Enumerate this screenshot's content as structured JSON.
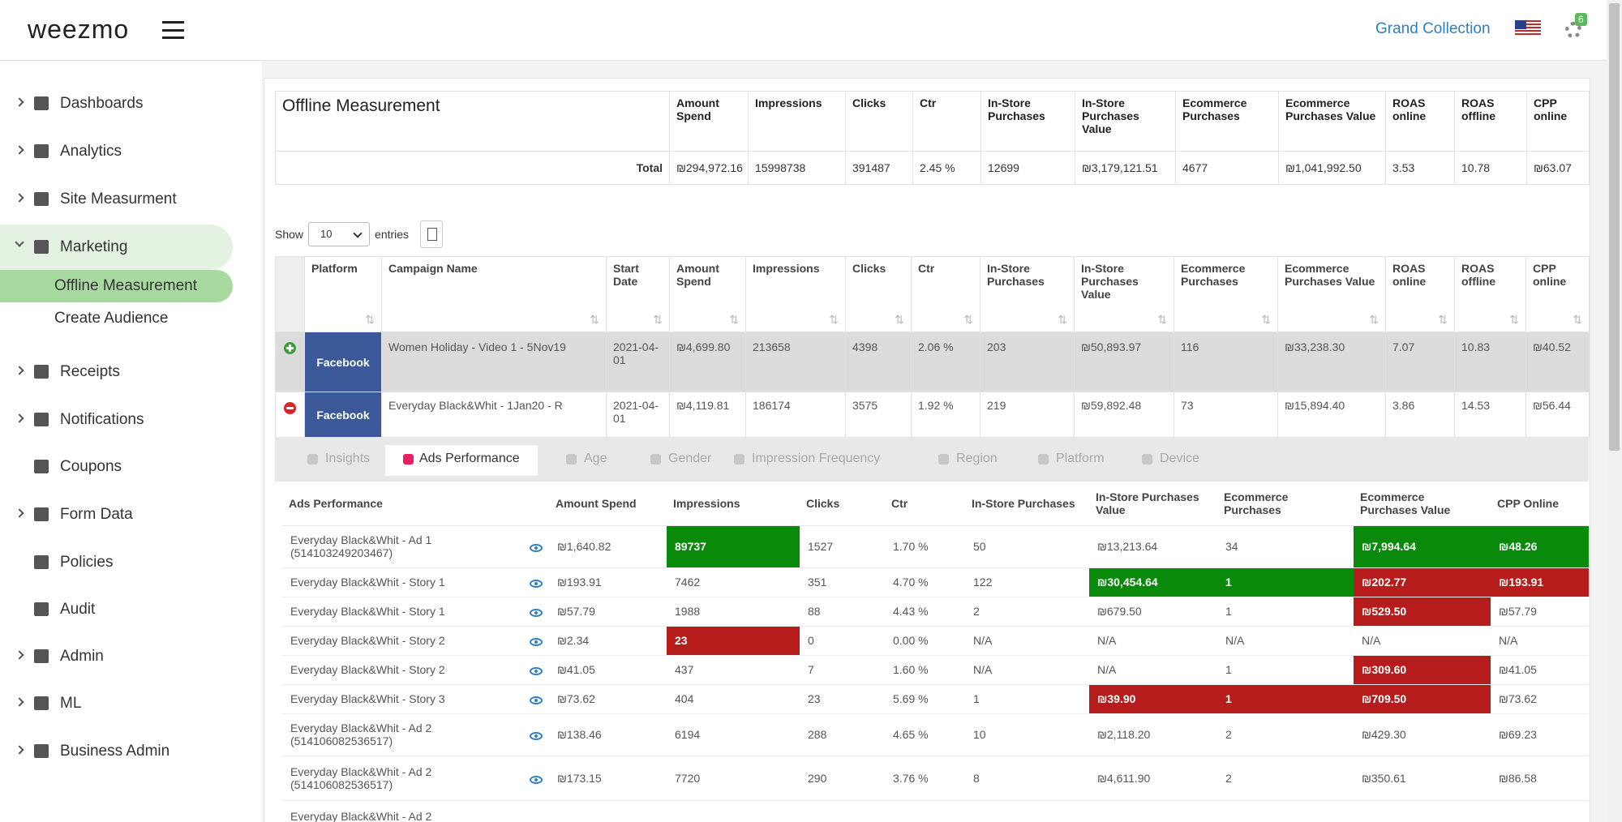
{
  "header": {
    "logo": "weezmo",
    "store": "Grand Collection",
    "badge": "6"
  },
  "sidebar": {
    "open_index": 3,
    "items": [
      {
        "label": "Dashboards",
        "expandable": true
      },
      {
        "label": "Analytics",
        "expandable": true
      },
      {
        "label": "Site Measurment",
        "expandable": true
      },
      {
        "label": "Marketing",
        "expandable": true
      },
      {
        "label": "Receipts",
        "expandable": true
      },
      {
        "label": "Notifications",
        "expandable": true
      },
      {
        "label": "Coupons",
        "expandable": false
      },
      {
        "label": "Form Data",
        "expandable": true
      },
      {
        "label": "Policies",
        "expandable": false
      },
      {
        "label": "Audit",
        "expandable": false
      },
      {
        "label": "Admin",
        "expandable": true
      },
      {
        "label": "ML",
        "expandable": true
      },
      {
        "label": "Business Admin",
        "expandable": true
      }
    ],
    "submenu": [
      "Offline Measurement",
      "Create Audience"
    ],
    "active_submenu": 0
  },
  "summary": {
    "title": "Offline Measurement",
    "total_label": "Total",
    "columns": [
      "Amount Spend",
      "Impressions",
      "Clicks",
      "Ctr",
      "In-Store Purchases",
      "In-Store Purchases Value",
      "Ecommerce Purchases",
      "Ecommerce Purchases Value",
      "ROAS online",
      "ROAS offline",
      "CPP online"
    ],
    "values": [
      "₪294,972.16",
      "15998738",
      "391487",
      "2.45 %",
      "12699",
      "₪3,179,121.51",
      "4677",
      "₪1,041,992.50",
      "3.53",
      "10.78",
      "₪63.07"
    ]
  },
  "controls": {
    "show": "Show",
    "page_size": "10",
    "entries": "entries"
  },
  "campaigns": {
    "columns": [
      "Platform",
      "Campaign Name",
      "Start Date",
      "Amount Spend",
      "Impressions",
      "Clicks",
      "Ctr",
      "In-Store Purchases",
      "In-Store Purchases Value",
      "Ecommerce Purchases",
      "Ecommerce Purchases Value",
      "ROAS online",
      "ROAS offline",
      "CPP online"
    ],
    "rows": [
      {
        "expanded": false,
        "platform": "Facebook",
        "cells": [
          "Women Holiday - Video 1 - 5Nov19",
          "2021-04-01",
          "₪4,699.80",
          "213658",
          "4398",
          "2.06 %",
          "203",
          "₪50,893.97",
          "116",
          "₪33,238.30",
          "7.07",
          "10.83",
          "₪40.52"
        ]
      },
      {
        "expanded": true,
        "platform": "Facebook",
        "cells": [
          "Everyday Black&Whit - 1Jan20 - R",
          "2021-04-01",
          "₪4,119.81",
          "186174",
          "3575",
          "1.92 %",
          "219",
          "₪59,892.48",
          "73",
          "₪15,894.40",
          "3.86",
          "14.53",
          "₪56.44"
        ]
      }
    ]
  },
  "tabs": {
    "active": 1,
    "items": [
      "Insights",
      "Ads Performance",
      "Age",
      "Gender",
      "Impression Frequency",
      "Region",
      "Platform",
      "Device"
    ]
  },
  "ads": {
    "columns": [
      "Ads Performance",
      "Amount Spend",
      "Impressions",
      "Clicks",
      "Ctr",
      "In-Store Purchases",
      "In-Store Purchases Value",
      "Ecommerce Purchases",
      "Ecommerce Purchases Value",
      "CPP Online"
    ],
    "rows": [
      {
        "name": "Everyday Black&Whit - Ad 1 (514103249203467)",
        "cells": [
          "₪1,640.82",
          "89737",
          "1527",
          "1.70 %",
          "50",
          "₪13,213.64",
          "34",
          "₪7,994.64",
          "₪48.26"
        ],
        "highlights": {
          "1": "green",
          "7": "green",
          "8": "green"
        }
      },
      {
        "name": "Everyday Black&Whit - Story 1",
        "cells": [
          "₪193.91",
          "7462",
          "351",
          "4.70 %",
          "122",
          "₪30,454.64",
          "1",
          "₪202.77",
          "₪193.91"
        ],
        "highlights": {
          "5": "green",
          "6": "green",
          "7": "red",
          "8": "red"
        }
      },
      {
        "name": "Everyday Black&Whit - Story 1",
        "cells": [
          "₪57.79",
          "1988",
          "88",
          "4.43 %",
          "2",
          "₪679.50",
          "1",
          "₪529.50",
          "₪57.79"
        ],
        "highlights": {
          "7": "red"
        }
      },
      {
        "name": "Everyday Black&Whit - Story 2",
        "cells": [
          "₪2.34",
          "23",
          "0",
          "0.00 %",
          "N/A",
          "N/A",
          "N/A",
          "N/A",
          "N/A"
        ],
        "highlights": {
          "1": "red"
        }
      },
      {
        "name": "Everyday Black&Whit - Story 2",
        "cells": [
          "₪41.05",
          "437",
          "7",
          "1.60 %",
          "N/A",
          "N/A",
          "1",
          "₪309.60",
          "₪41.05"
        ],
        "highlights": {
          "7": "red"
        }
      },
      {
        "name": "Everyday Black&Whit - Story 3",
        "cells": [
          "₪73.62",
          "404",
          "23",
          "5.69 %",
          "1",
          "₪39.90",
          "1",
          "₪709.50",
          "₪73.62"
        ],
        "highlights": {
          "5": "red",
          "6": "red",
          "7": "red"
        }
      },
      {
        "name": "Everyday Black&Whit - Ad 2 (514106082536517)",
        "cells": [
          "₪138.46",
          "6194",
          "288",
          "4.65 %",
          "10",
          "₪2,118.20",
          "2",
          "₪429.30",
          "₪69.23"
        ],
        "highlights": {}
      },
      {
        "name": "Everyday Black&Whit - Ad 2 (514106082536517)",
        "cells": [
          "₪173.15",
          "7720",
          "290",
          "3.76 %",
          "8",
          "₪4,611.90",
          "2",
          "₪350.61",
          "₪86.58"
        ],
        "highlights": {}
      },
      {
        "name": "Everyday Black&Whit - Ad 2",
        "cells": [],
        "highlights": {}
      }
    ]
  }
}
